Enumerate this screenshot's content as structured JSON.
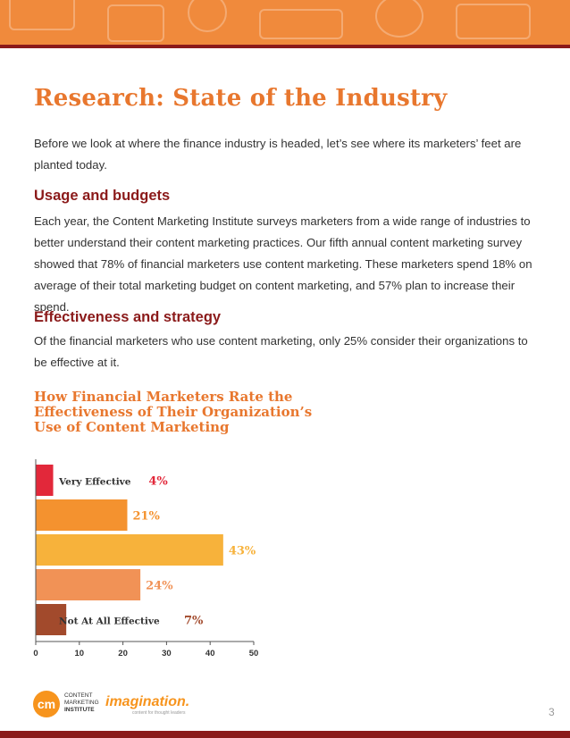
{
  "heading": "Research: State of the Industry",
  "intro": "Before we look at where the finance industry is headed, let’s see where its marketers’ feet are planted today.",
  "section1": {
    "title": "Usage and budgets",
    "body": "Each year, the Content Marketing Institute surveys marketers from a wide range of industries to better understand their content marketing practices. Our fifth annual content marketing survey showed that 78% of financial marketers use content marketing. These marketers spend 18% on average of their total marketing budget on content marketing, and 57% plan to increase their spend."
  },
  "section2": {
    "title": "Effectiveness and strategy",
    "body": "Of the financial marketers who use content marketing, only 25% consider their organizations to be effective at it."
  },
  "chart_data": {
    "type": "bar",
    "orientation": "horizontal",
    "title_lines": [
      "How Financial Marketers Rate the",
      "Effectiveness of Their Organization’s",
      "Use of Content Marketing"
    ],
    "categories": [
      "Very Effective",
      "",
      "",
      "",
      "Not At All Effective"
    ],
    "values": [
      4,
      21,
      43,
      24,
      7
    ],
    "value_labels": [
      "4%",
      "21%",
      "43%",
      "24%",
      "7%"
    ],
    "colors": [
      "#e2283a",
      "#f4922f",
      "#f7b23b",
      "#f19256",
      "#a24a2c"
    ],
    "label_colors": [
      "#e2283a",
      "#f4922f",
      "#f7b23b",
      "#f19256",
      "#a24a2c"
    ],
    "xlim": [
      0,
      50
    ],
    "xticks": [
      "0",
      "10",
      "20",
      "30",
      "40",
      "50"
    ]
  },
  "footer": {
    "cmi_monogram": "cm",
    "cmi_lines": [
      "CONTENT",
      "MARKETING",
      "INSTITUTE"
    ],
    "imagination": "imagination.",
    "imagination_tagline": "content for thought leaders",
    "page_number": "3"
  }
}
